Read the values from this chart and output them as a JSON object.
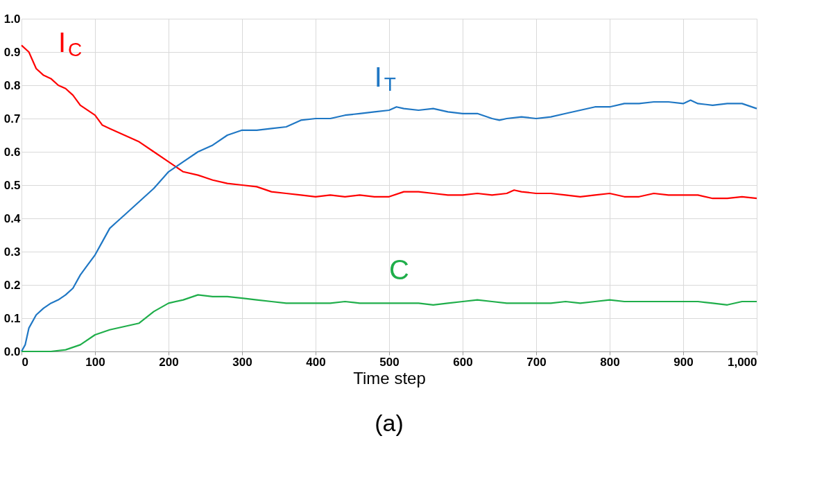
{
  "chart_data": {
    "type": "line",
    "xlabel": "Time step",
    "annotations": [
      "(a)"
    ],
    "grid": true,
    "legend": false,
    "marker": "none",
    "line_style": "solid",
    "xlim": [
      0,
      1000
    ],
    "xticks": [
      0,
      100,
      200,
      300,
      400,
      500,
      600,
      700,
      800,
      900,
      {
        "value": 1000,
        "label": "1,000"
      }
    ],
    "ylim": [
      0,
      1.0
    ],
    "yticks": [
      {
        "value": 0,
        "label": "0.0"
      },
      0.1,
      0.2,
      0.3,
      0.4,
      0.5,
      0.6,
      0.7,
      0.8,
      0.9,
      {
        "value": 1.0,
        "label": "1.0"
      }
    ],
    "series": [
      {
        "name": "I$_{C}$",
        "color": "#ff0000",
        "x": [
          0,
          10,
          20,
          30,
          40,
          50,
          60,
          70,
          80,
          100,
          110,
          120,
          140,
          160,
          180,
          200,
          220,
          240,
          260,
          280,
          300,
          320,
          340,
          360,
          380,
          400,
          420,
          440,
          460,
          480,
          500,
          520,
          540,
          560,
          580,
          600,
          620,
          640,
          660,
          670,
          680,
          700,
          720,
          740,
          760,
          780,
          800,
          820,
          840,
          860,
          880,
          900,
          920,
          940,
          960,
          980,
          1000
        ],
        "values": [
          0.92,
          0.9,
          0.85,
          0.83,
          0.82,
          0.8,
          0.79,
          0.77,
          0.74,
          0.71,
          0.68,
          0.67,
          0.65,
          0.63,
          0.6,
          0.57,
          0.54,
          0.53,
          0.515,
          0.505,
          0.5,
          0.495,
          0.48,
          0.475,
          0.47,
          0.465,
          0.47,
          0.465,
          0.47,
          0.465,
          0.465,
          0.48,
          0.48,
          0.475,
          0.47,
          0.47,
          0.475,
          0.47,
          0.475,
          0.485,
          0.48,
          0.475,
          0.475,
          0.47,
          0.465,
          0.47,
          0.475,
          0.465,
          0.465,
          0.475,
          0.47,
          0.47,
          0.47,
          0.46,
          0.46,
          0.465,
          0.46
        ]
      },
      {
        "name": "I$_{T}$",
        "color": "#1f77c4",
        "x": [
          0,
          5,
          10,
          20,
          30,
          40,
          50,
          60,
          70,
          80,
          90,
          100,
          110,
          120,
          130,
          140,
          160,
          180,
          200,
          220,
          240,
          260,
          280,
          300,
          320,
          340,
          360,
          380,
          400,
          420,
          440,
          460,
          480,
          500,
          510,
          520,
          540,
          560,
          580,
          600,
          620,
          640,
          650,
          660,
          680,
          700,
          720,
          740,
          760,
          780,
          800,
          820,
          840,
          860,
          880,
          900,
          910,
          920,
          940,
          960,
          980,
          1000
        ],
        "values": [
          0,
          0.02,
          0.07,
          0.11,
          0.13,
          0.145,
          0.155,
          0.17,
          0.19,
          0.23,
          0.26,
          0.29,
          0.33,
          0.37,
          0.39,
          0.41,
          0.45,
          0.49,
          0.54,
          0.57,
          0.6,
          0.62,
          0.65,
          0.665,
          0.665,
          0.67,
          0.675,
          0.695,
          0.7,
          0.7,
          0.71,
          0.715,
          0.72,
          0.725,
          0.735,
          0.73,
          0.725,
          0.73,
          0.72,
          0.715,
          0.715,
          0.7,
          0.695,
          0.7,
          0.705,
          0.7,
          0.705,
          0.715,
          0.725,
          0.735,
          0.735,
          0.745,
          0.745,
          0.75,
          0.75,
          0.745,
          0.755,
          0.745,
          0.74,
          0.745,
          0.745,
          0.73
        ]
      },
      {
        "name": "C",
        "color": "#1fae4a",
        "x": [
          0,
          40,
          60,
          80,
          100,
          120,
          140,
          160,
          180,
          200,
          220,
          240,
          260,
          280,
          300,
          320,
          340,
          360,
          380,
          400,
          420,
          440,
          460,
          480,
          500,
          520,
          540,
          560,
          580,
          600,
          620,
          640,
          660,
          680,
          700,
          720,
          740,
          760,
          780,
          800,
          820,
          840,
          860,
          880,
          900,
          920,
          940,
          960,
          980,
          1000
        ],
        "values": [
          0,
          0,
          0.005,
          0.02,
          0.05,
          0.065,
          0.075,
          0.085,
          0.12,
          0.145,
          0.155,
          0.17,
          0.165,
          0.165,
          0.16,
          0.155,
          0.15,
          0.145,
          0.145,
          0.145,
          0.145,
          0.15,
          0.145,
          0.145,
          0.145,
          0.145,
          0.145,
          0.14,
          0.145,
          0.15,
          0.155,
          0.15,
          0.145,
          0.145,
          0.145,
          0.145,
          0.15,
          0.145,
          0.15,
          0.155,
          0.15,
          0.15,
          0.15,
          0.15,
          0.15,
          0.15,
          0.145,
          0.14,
          0.15,
          0.15
        ]
      }
    ]
  }
}
